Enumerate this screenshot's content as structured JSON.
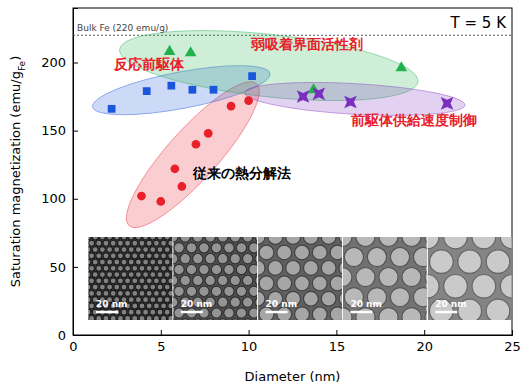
{
  "chart_data": {
    "type": "scatter",
    "x_label": "Diameter (nm)",
    "y_label": "Saturation magnetization (emu/gFe)",
    "y_label_subscript": "Fe",
    "xlim": [
      0,
      25
    ],
    "ylim": [
      0,
      240
    ],
    "xticks": [
      0,
      5,
      10,
      15,
      20,
      25
    ],
    "yticks": [
      0,
      50,
      100,
      150,
      200
    ],
    "annotations": [
      "T = 5 K"
    ],
    "reference_line": {
      "value": 220,
      "label": "Bulk Fe (220 emu/g)"
    },
    "inset_scale_bars": [
      "20 nm",
      "20 nm",
      "20 nm",
      "20 nm",
      "20 nm"
    ],
    "series": [
      {
        "name": "従来の熱分解法",
        "color": "#e8202a",
        "marker": "circle",
        "x": [
          3.9,
          5.0,
          5.8,
          6.2,
          7.0,
          7.7,
          9.0,
          10.0
        ],
        "values": [
          102,
          98,
          122,
          109,
          140,
          148,
          168,
          172
        ]
      },
      {
        "name": "反応前駆体",
        "color": "#1a56db",
        "marker": "square",
        "x": [
          2.2,
          4.2,
          5.6,
          6.8,
          8.0,
          10.2
        ],
        "values": [
          166,
          179,
          183,
          180,
          180,
          190
        ]
      },
      {
        "name": "弱吸着界面活性剤",
        "color": "#22b14c",
        "marker": "triangle",
        "x": [
          5.5,
          6.7,
          13.7,
          18.7
        ],
        "values": [
          208,
          207,
          180,
          196
        ]
      },
      {
        "name": "前駆体供給速度制御",
        "color": "#7b2fbe",
        "marker": "star",
        "x": [
          13.1,
          14.0,
          15.8,
          21.3
        ],
        "values": [
          175,
          177,
          171,
          170
        ]
      }
    ]
  }
}
